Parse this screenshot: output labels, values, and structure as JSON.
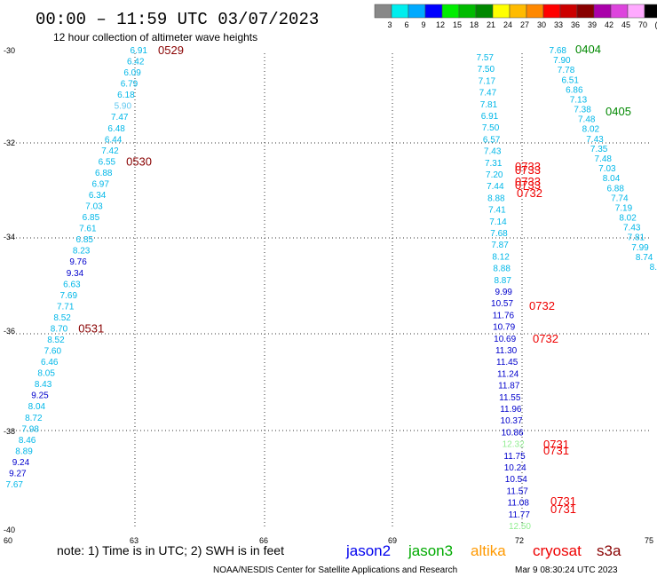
{
  "header": {
    "title": "00:00 – 11:59 UTC 03/07/2023",
    "subtitle": "12 hour collection of altimeter wave heights"
  },
  "colorbar": {
    "labels": [
      "3",
      "6",
      "9",
      "12",
      "15",
      "18",
      "21",
      "24",
      "27",
      "30",
      "33",
      "36",
      "39",
      "42",
      "45",
      "70",
      "(ft)"
    ],
    "colors": [
      "#888888",
      "#00eeee",
      "#00aaff",
      "#0000ff",
      "#00ee00",
      "#00bb00",
      "#008800",
      "#ffff00",
      "#ffbb00",
      "#ff8800",
      "#ff0000",
      "#cc0000",
      "#880000",
      "#aa00aa",
      "#dd44dd",
      "#ffaaff",
      "#000000"
    ]
  },
  "axes": {
    "y_ticks": [
      "-30",
      "-32",
      "-34",
      "-36",
      "-38",
      "-40"
    ],
    "x_ticks": [
      "60",
      "63",
      "66",
      "69",
      "72",
      "75"
    ]
  },
  "tracks": [
    {
      "name": "track-1",
      "color": "#00b7e8",
      "labels": [
        {
          "v": "6.91",
          "c": "#00b7e8"
        },
        {
          "v": "6.42",
          "c": "#00b7e8"
        },
        {
          "v": "6.09",
          "c": "#00b7e8"
        },
        {
          "v": "6.79",
          "c": "#00b7e8"
        },
        {
          "v": "6.18",
          "c": "#00b7e8"
        },
        {
          "v": "5.90",
          "c": "#60c8f0"
        },
        {
          "v": "7.47",
          "c": "#00b7e8"
        },
        {
          "v": "6.48",
          "c": "#00b7e8"
        },
        {
          "v": "6.44",
          "c": "#00b7e8"
        },
        {
          "v": "7.42",
          "c": "#00b7e8"
        },
        {
          "v": "6.55",
          "c": "#00b7e8"
        },
        {
          "v": "6.88",
          "c": "#00b7e8"
        },
        {
          "v": "6.97",
          "c": "#00b7e8"
        },
        {
          "v": "6.34",
          "c": "#00b7e8"
        },
        {
          "v": "7.03",
          "c": "#00b7e8"
        },
        {
          "v": "6.85",
          "c": "#00b7e8"
        },
        {
          "v": "7.61",
          "c": "#00b7e8"
        },
        {
          "v": "6.85",
          "c": "#00b7e8"
        },
        {
          "v": "8.23",
          "c": "#00b7e8"
        },
        {
          "v": "9.76",
          "c": "#0000cc"
        },
        {
          "v": "9.34",
          "c": "#0000cc"
        },
        {
          "v": "6.63",
          "c": "#00b7e8"
        },
        {
          "v": "7.69",
          "c": "#00b7e8"
        },
        {
          "v": "7.71",
          "c": "#00b7e8"
        },
        {
          "v": "8.52",
          "c": "#00b7e8"
        },
        {
          "v": "8.70",
          "c": "#00b7e8"
        },
        {
          "v": "8.52",
          "c": "#00b7e8"
        },
        {
          "v": "7.60",
          "c": "#00b7e8"
        },
        {
          "v": "6.46",
          "c": "#00b7e8"
        },
        {
          "v": "8.05",
          "c": "#00b7e8"
        },
        {
          "v": "8.43",
          "c": "#00b7e8"
        },
        {
          "v": "9.25",
          "c": "#0000cc"
        },
        {
          "v": "8.04",
          "c": "#00b7e8"
        },
        {
          "v": "8.72",
          "c": "#00b7e8"
        },
        {
          "v": "7.98",
          "c": "#00b7e8"
        },
        {
          "v": "8.46",
          "c": "#00b7e8"
        },
        {
          "v": "8.89",
          "c": "#00b7e8"
        },
        {
          "v": "9.24",
          "c": "#0000cc"
        },
        {
          "v": "9.27",
          "c": "#0000cc"
        },
        {
          "v": "7.67",
          "c": "#00b7e8"
        }
      ],
      "times": [
        {
          "v": "0529",
          "after": 0,
          "c": "#880000"
        },
        {
          "v": "0530",
          "after": 10,
          "c": "#880000"
        },
        {
          "v": "0531",
          "after": 25,
          "c": "#880000"
        }
      ]
    },
    {
      "name": "track-2",
      "labels": [
        {
          "v": "7.57",
          "c": "#00b7e8"
        },
        {
          "v": "7.50",
          "c": "#00b7e8"
        },
        {
          "v": "7.17",
          "c": "#00b7e8"
        },
        {
          "v": "7.47",
          "c": "#00b7e8"
        },
        {
          "v": "7.81",
          "c": "#00b7e8"
        },
        {
          "v": "6.91",
          "c": "#00b7e8"
        },
        {
          "v": "7.50",
          "c": "#00b7e8"
        },
        {
          "v": "6.57",
          "c": "#00b7e8"
        },
        {
          "v": "7.43",
          "c": "#00b7e8"
        },
        {
          "v": "7.31",
          "c": "#00b7e8"
        },
        {
          "v": "7.20",
          "c": "#00b7e8"
        },
        {
          "v": "7.44",
          "c": "#00b7e8"
        },
        {
          "v": "8.88",
          "c": "#00b7e8"
        },
        {
          "v": "7.41",
          "c": "#00b7e8"
        },
        {
          "v": "7.14",
          "c": "#00b7e8"
        },
        {
          "v": "7.68",
          "c": "#00b7e8"
        },
        {
          "v": "7.87",
          "c": "#00b7e8"
        },
        {
          "v": "8.12",
          "c": "#00b7e8"
        },
        {
          "v": "8.88",
          "c": "#00b7e8"
        },
        {
          "v": "8.87",
          "c": "#00b7e8"
        },
        {
          "v": "9.99",
          "c": "#0000cc"
        },
        {
          "v": "10.57",
          "c": "#0000cc"
        },
        {
          "v": "11.76",
          "c": "#0000cc"
        },
        {
          "v": "10.79",
          "c": "#0000cc"
        },
        {
          "v": "10.69",
          "c": "#0000cc"
        },
        {
          "v": "11.30",
          "c": "#0000cc"
        },
        {
          "v": "11.45",
          "c": "#0000cc"
        },
        {
          "v": "11.24",
          "c": "#0000cc"
        },
        {
          "v": "11.87",
          "c": "#0000cc"
        },
        {
          "v": "11.55",
          "c": "#0000cc"
        },
        {
          "v": "11.96",
          "c": "#0000cc"
        },
        {
          "v": "10.37",
          "c": "#0000cc"
        },
        {
          "v": "10.86",
          "c": "#0000cc"
        },
        {
          "v": "12.32",
          "c": "#90ee90"
        },
        {
          "v": "11.75",
          "c": "#0000cc"
        },
        {
          "v": "10.24",
          "c": "#0000cc"
        },
        {
          "v": "10.54",
          "c": "#0000cc"
        },
        {
          "v": "11.57",
          "c": "#0000cc"
        },
        {
          "v": "11.08",
          "c": "#0000cc"
        },
        {
          "v": "11.77",
          "c": "#0000cc"
        },
        {
          "v": "12.50",
          "c": "#90ee90"
        }
      ],
      "times": [
        {
          "v": "0733",
          "c": "#ee0000"
        },
        {
          "v": "0733",
          "c": "#ee0000"
        },
        {
          "v": "0733",
          "c": "#ee0000"
        },
        {
          "v": "0733",
          "c": "#ee0000"
        },
        {
          "v": "0732",
          "c": "#ee0000"
        },
        {
          "v": "0732",
          "c": "#ee0000"
        },
        {
          "v": "0732",
          "c": "#ee0000"
        },
        {
          "v": "0731",
          "c": "#ee0000"
        },
        {
          "v": "0731",
          "c": "#ee0000"
        },
        {
          "v": "0731",
          "c": "#ee0000"
        },
        {
          "v": "0731",
          "c": "#ee0000"
        }
      ]
    },
    {
      "name": "track-3",
      "labels": [
        {
          "v": "7.68",
          "c": "#00b7e8"
        },
        {
          "v": "7.90",
          "c": "#00b7e8"
        },
        {
          "v": "7.78",
          "c": "#00b7e8"
        },
        {
          "v": "6.51",
          "c": "#00b7e8"
        },
        {
          "v": "6.86",
          "c": "#00b7e8"
        },
        {
          "v": "7.13",
          "c": "#00b7e8"
        },
        {
          "v": "7.38",
          "c": "#00b7e8"
        },
        {
          "v": "7.48",
          "c": "#00b7e8"
        },
        {
          "v": "8.02",
          "c": "#00b7e8"
        },
        {
          "v": "7.43",
          "c": "#00b7e8"
        },
        {
          "v": "7.35",
          "c": "#00b7e8"
        },
        {
          "v": "7.48",
          "c": "#00b7e8"
        },
        {
          "v": "7.03",
          "c": "#00b7e8"
        },
        {
          "v": "8.04",
          "c": "#00b7e8"
        },
        {
          "v": "6.88",
          "c": "#00b7e8"
        },
        {
          "v": "7.74",
          "c": "#00b7e8"
        },
        {
          "v": "7.19",
          "c": "#00b7e8"
        },
        {
          "v": "8.02",
          "c": "#00b7e8"
        },
        {
          "v": "7.43",
          "c": "#00b7e8"
        },
        {
          "v": "7.81",
          "c": "#00b7e8"
        },
        {
          "v": "7.99",
          "c": "#00b7e8"
        },
        {
          "v": "8.74",
          "c": "#00b7e8"
        },
        {
          "v": "8.",
          "c": "#00b7e8"
        }
      ],
      "times": [
        {
          "v": "0404",
          "c": "#008800"
        },
        {
          "v": "0405",
          "c": "#008800"
        }
      ]
    }
  ],
  "legend": {
    "note": "note: 1) Time is in UTC; 2) SWH is in feet",
    "satellites": [
      {
        "name": "jason2",
        "color": "#0000ee"
      },
      {
        "name": "jason3",
        "color": "#00aa00"
      },
      {
        "name": "altika",
        "color": "#ff9900"
      },
      {
        "name": "cryosat",
        "color": "#ee0000"
      },
      {
        "name": "s3a",
        "color": "#880000"
      }
    ]
  },
  "footer": {
    "credit": "NOAA/NESDIS Center for Satellite Applications and Research",
    "timestamp": "Mar  9 08:30:24 UTC 2023"
  }
}
